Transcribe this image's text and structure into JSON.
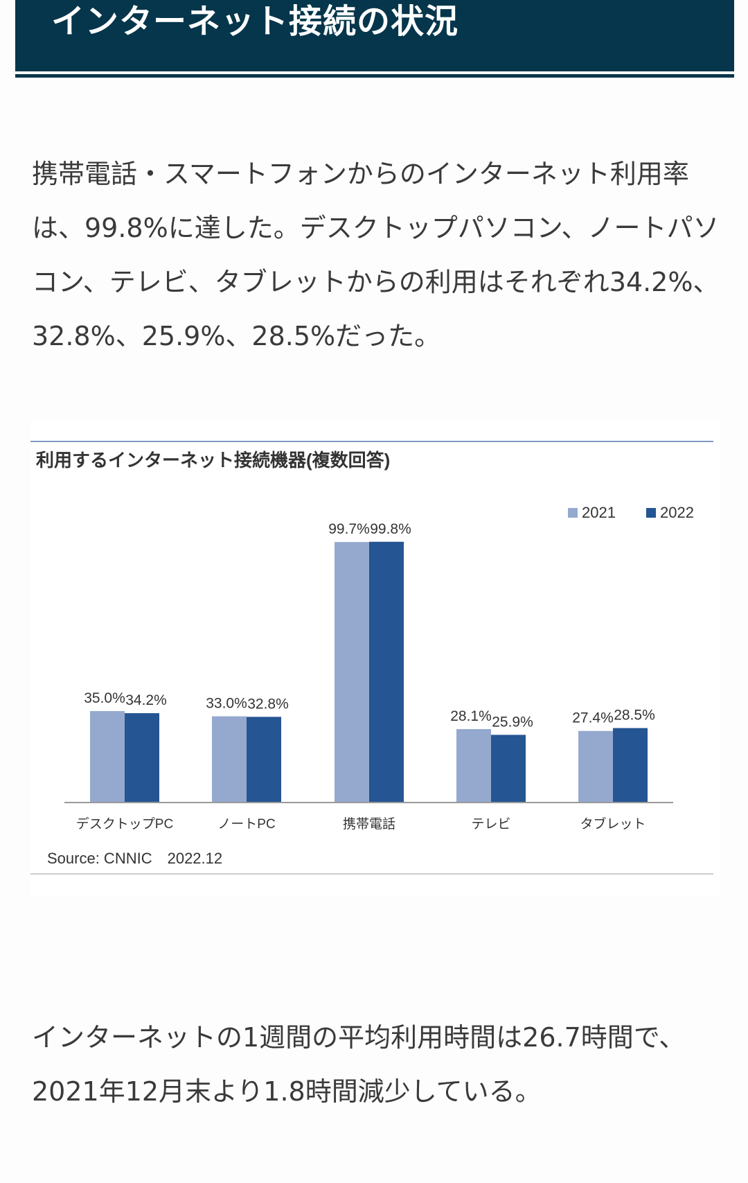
{
  "header": {
    "title": "インターネット接続の状況"
  },
  "paragraphs": [
    "携帯電話・スマートフォンからのインターネット利用率は、99.8%に達した。デスクトップパソコン、ノートパソコン、テレビ、タブレットからの利用はそれぞれ34.2%、32.8%、25.9%、28.5%だった。",
    "インターネットの1週間の平均利用時間は26.7時間で、2021年12月末より1.8時間減少している。"
  ],
  "chart_data": {
    "type": "bar",
    "title": "利用するインターネット接続機器(複数回答)",
    "categories": [
      "デスクトップPC",
      "ノートPC",
      "携帯電話",
      "テレビ",
      "タブレット"
    ],
    "series": [
      {
        "name": "2021",
        "color": "#95a9cf",
        "values": [
          35.0,
          33.0,
          99.7,
          28.1,
          27.4
        ],
        "labels": [
          "35.0%",
          "33.0%",
          "99.7%",
          "28.1%",
          "27.4%"
        ]
      },
      {
        "name": "2022",
        "color": "#255592",
        "values": [
          34.2,
          32.8,
          99.8,
          25.9,
          28.5
        ],
        "labels": [
          "34.2%",
          "32.8%",
          "99.8%",
          "25.9%",
          "28.5%"
        ]
      }
    ],
    "ylim": [
      0,
      100
    ],
    "legend": "top-right",
    "source": "Source: CNNIC　2022.12"
  }
}
